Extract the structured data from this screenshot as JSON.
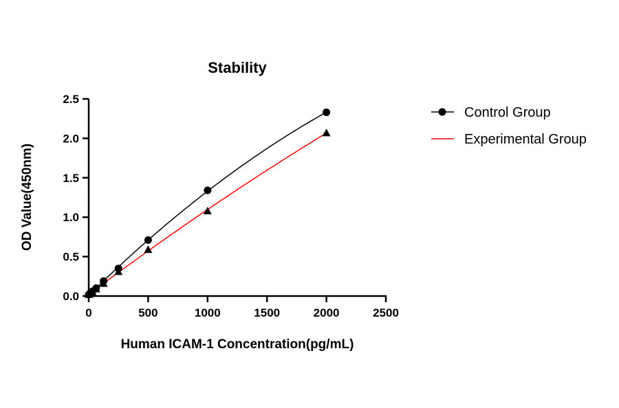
{
  "chart_data": {
    "type": "scatter",
    "title": "Stability",
    "xlabel": "Human ICAM-1 Concentration(pg/mL)",
    "ylabel": "OD Value(450nm)",
    "xlim": [
      0,
      2500
    ],
    "ylim": [
      0,
      2.5
    ],
    "xticks": [
      "0",
      "500",
      "1000",
      "1500",
      "2000",
      "2500"
    ],
    "yticks": [
      "0.0",
      "0.5",
      "1.0",
      "1.5",
      "2.0",
      "2.5"
    ],
    "grid": false,
    "legend_position": "right",
    "x": [
      0,
      15.63,
      31.25,
      62.5,
      125,
      250,
      500,
      1000,
      2000
    ],
    "series": [
      {
        "name": "Control Group",
        "marker": "circle",
        "color": "#000000",
        "values": [
          0.02,
          0.04,
          0.06,
          0.1,
          0.19,
          0.35,
          0.71,
          1.34,
          2.33
        ]
      },
      {
        "name": "Experimental Group",
        "marker": "triangle",
        "color": "#ff0000",
        "values": [
          0.02,
          0.03,
          0.05,
          0.09,
          0.16,
          0.31,
          0.59,
          1.08,
          2.07
        ]
      }
    ]
  }
}
